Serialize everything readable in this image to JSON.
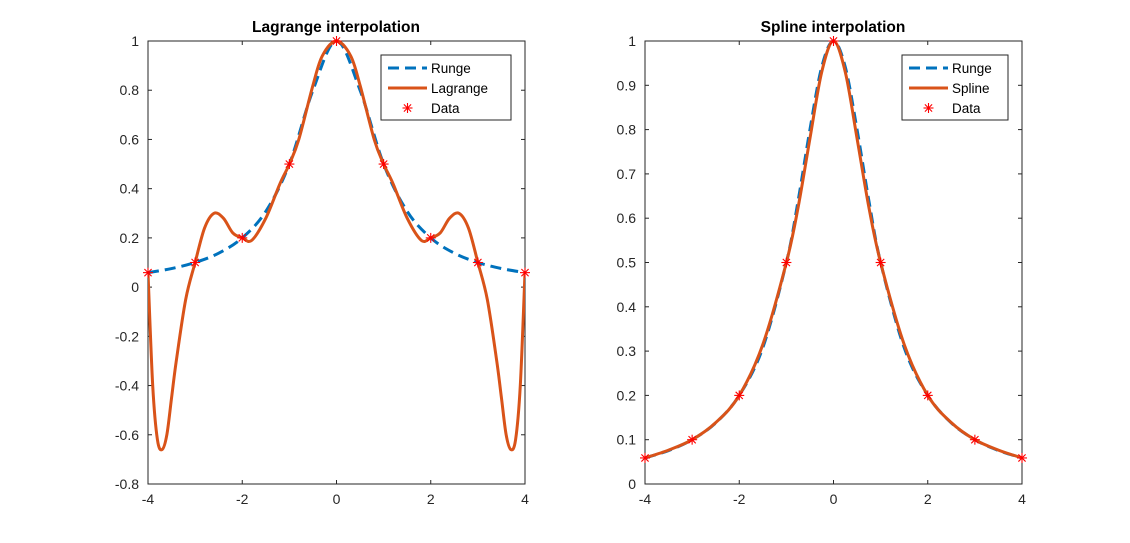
{
  "colors": {
    "runge": "#0072BD",
    "interp": "#D95319",
    "data": "#FF0000",
    "axis": "#262626",
    "background": "#FFFFFF"
  },
  "chart_data": [
    {
      "type": "line",
      "title": "Lagrange interpolation",
      "xlabel": "",
      "ylabel": "",
      "xlim": [
        -4,
        4
      ],
      "ylim": [
        -0.8,
        1
      ],
      "xticks": [
        -4,
        -2,
        0,
        2,
        4
      ],
      "yticks": [
        -0.8,
        -0.6,
        -0.4,
        -0.2,
        0,
        0.2,
        0.4,
        0.6,
        0.8,
        1
      ],
      "xtick_labels": [
        "-4",
        "-2",
        "0",
        "2",
        "4"
      ],
      "ytick_labels": [
        "-0.8",
        "-0.6",
        "-0.4",
        "-0.2",
        "0",
        "0.2",
        "0.4",
        "0.6",
        "0.8",
        "1"
      ],
      "grid": false,
      "legend_position": "top-right",
      "series": [
        {
          "name": "Runge",
          "style": "dashed",
          "x": [
            -4,
            -3.5,
            -3,
            -2.5,
            -2,
            -1.5,
            -1,
            -0.5,
            0,
            0.5,
            1,
            1.5,
            2,
            2.5,
            3,
            3.5,
            4
          ],
          "y": [
            0.0588,
            0.0755,
            0.1,
            0.1379,
            0.2,
            0.3077,
            0.5,
            0.8,
            1,
            0.8,
            0.5,
            0.3077,
            0.2,
            0.1379,
            0.1,
            0.0755,
            0.0588
          ]
        },
        {
          "name": "Lagrange",
          "style": "solid",
          "x": [
            -4,
            -3.9,
            -3.8,
            -3.7,
            -3.6,
            -3.5,
            -3.4,
            -3.2,
            -3,
            -2.8,
            -2.6,
            -2.4,
            -2.2,
            -2,
            -1.8,
            -1.5,
            -1.2,
            -1,
            -0.8,
            -0.5,
            -0.3,
            0,
            0.3,
            0.5,
            0.8,
            1,
            1.2,
            1.5,
            1.8,
            2,
            2.2,
            2.4,
            2.6,
            2.8,
            3,
            3.2,
            3.4,
            3.5,
            3.6,
            3.7,
            3.8,
            3.9,
            4
          ],
          "y": [
            0.0588,
            -0.4,
            -0.62,
            -0.66,
            -0.6,
            -0.45,
            -0.3,
            -0.05,
            0.1,
            0.24,
            0.3,
            0.28,
            0.22,
            0.2,
            0.19,
            0.28,
            0.42,
            0.5,
            0.6,
            0.82,
            0.94,
            1,
            0.94,
            0.82,
            0.6,
            0.5,
            0.42,
            0.28,
            0.19,
            0.2,
            0.22,
            0.28,
            0.3,
            0.24,
            0.1,
            -0.05,
            -0.3,
            -0.45,
            -0.6,
            -0.66,
            -0.62,
            -0.4,
            0.0588
          ]
        },
        {
          "name": "Data",
          "style": "markers",
          "x": [
            -4,
            -3,
            -2,
            -1,
            0,
            1,
            2,
            3,
            4
          ],
          "y": [
            0.0588,
            0.1,
            0.2,
            0.5,
            1,
            0.5,
            0.2,
            0.1,
            0.0588
          ]
        }
      ]
    },
    {
      "type": "line",
      "title": "Spline interpolation",
      "xlabel": "",
      "ylabel": "",
      "xlim": [
        -4,
        4
      ],
      "ylim": [
        0,
        1
      ],
      "xticks": [
        -4,
        -2,
        0,
        2,
        4
      ],
      "yticks": [
        0,
        0.1,
        0.2,
        0.3,
        0.4,
        0.5,
        0.6,
        0.7,
        0.8,
        0.9,
        1
      ],
      "xtick_labels": [
        "-4",
        "-2",
        "0",
        "2",
        "4"
      ],
      "ytick_labels": [
        "0",
        "0.1",
        "0.2",
        "0.3",
        "0.4",
        "0.5",
        "0.6",
        "0.7",
        "0.8",
        "0.9",
        "1"
      ],
      "grid": false,
      "legend_position": "top-right",
      "series": [
        {
          "name": "Runge",
          "style": "dashed",
          "x": [
            -4,
            -3.5,
            -3,
            -2.5,
            -2,
            -1.5,
            -1,
            -0.75,
            -0.5,
            -0.25,
            0,
            0.25,
            0.5,
            0.75,
            1,
            1.5,
            2,
            2.5,
            3,
            3.5,
            4
          ],
          "y": [
            0.0588,
            0.0755,
            0.1,
            0.1379,
            0.2,
            0.3077,
            0.5,
            0.64,
            0.8,
            0.9412,
            1,
            0.9412,
            0.8,
            0.64,
            0.5,
            0.3077,
            0.2,
            0.1379,
            0.1,
            0.0755,
            0.0588
          ]
        },
        {
          "name": "Spline",
          "style": "solid",
          "x": [
            -4,
            -3.5,
            -3,
            -2.5,
            -2,
            -1.5,
            -1,
            -0.75,
            -0.5,
            -0.25,
            0,
            0.25,
            0.5,
            0.75,
            1,
            1.5,
            2,
            2.5,
            3,
            3.5,
            4
          ],
          "y": [
            0.0588,
            0.0765,
            0.1,
            0.1385,
            0.2,
            0.315,
            0.5,
            0.625,
            0.78,
            0.93,
            1,
            0.93,
            0.78,
            0.625,
            0.5,
            0.315,
            0.2,
            0.1385,
            0.1,
            0.0765,
            0.0588
          ]
        },
        {
          "name": "Data",
          "style": "markers",
          "x": [
            -4,
            -3,
            -2,
            -1,
            0,
            1,
            2,
            3,
            4
          ],
          "y": [
            0.0588,
            0.1,
            0.2,
            0.5,
            1,
            0.5,
            0.2,
            0.1,
            0.0588
          ]
        }
      ]
    }
  ]
}
